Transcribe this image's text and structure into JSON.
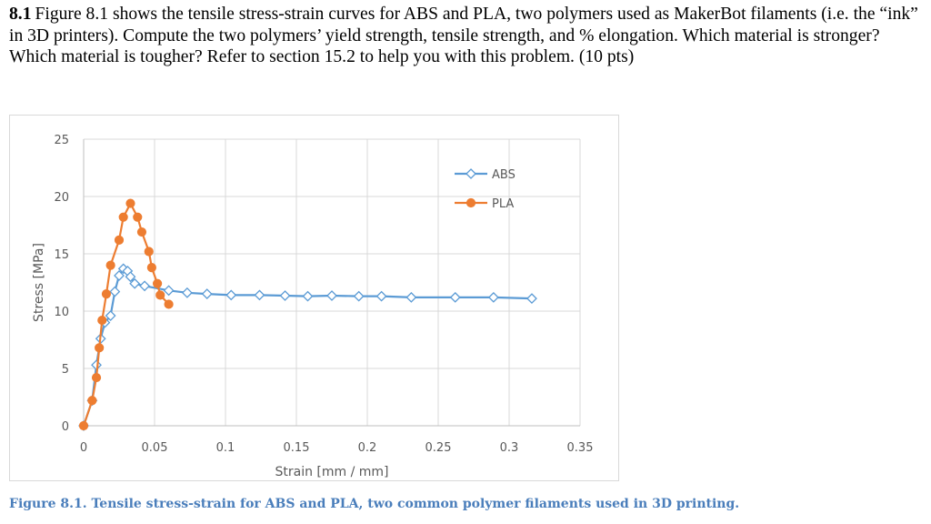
{
  "problem": {
    "number": "8.1",
    "text": "Figure 8.1 shows the tensile stress-strain curves for ABS and PLA, two polymers used as MakerBot filaments (i.e. the “ink” in 3D printers). Compute the two polymers’ yield strength, tensile strength, and % elongation. Which material is stronger? Which material is tougher? Refer to section 15.2 to help you with this problem. (10 pts)"
  },
  "caption": "Figure 8.1. Tensile stress-strain for ABS and PLA, two common polymer filaments used in 3D printing.",
  "chart_data": {
    "type": "scatter",
    "title": "",
    "xlabel": "Strain [mm / mm]",
    "ylabel": "Stress [MPa]",
    "xlim": [
      0,
      0.35
    ],
    "ylim": [
      0,
      25
    ],
    "x_ticks": [
      0,
      0.05,
      0.1,
      0.15,
      0.2,
      0.25,
      0.3,
      0.35
    ],
    "x_tick_labels": [
      "0",
      "0.05",
      "0.1",
      "0.15",
      "0.2",
      "0.25",
      "0.3",
      "0.35"
    ],
    "y_ticks": [
      0,
      5,
      10,
      15,
      20,
      25
    ],
    "y_tick_labels": [
      "0",
      "5",
      "10",
      "15",
      "20",
      "25"
    ],
    "grid": true,
    "legend_position": "top-right",
    "series": [
      {
        "name": "ABS",
        "color": "#5b9bd5",
        "marker": "diamond-open",
        "points": [
          [
            0,
            0
          ],
          [
            0.006,
            2.2
          ],
          [
            0.009,
            5.3
          ],
          [
            0.012,
            7.6
          ],
          [
            0.015,
            9.0
          ],
          [
            0.019,
            9.6
          ],
          [
            0.022,
            11.7
          ],
          [
            0.025,
            13.1
          ],
          [
            0.028,
            13.7
          ],
          [
            0.031,
            13.5
          ],
          [
            0.033,
            13.0
          ],
          [
            0.036,
            12.4
          ],
          [
            0.043,
            12.2
          ],
          [
            0.06,
            11.8
          ],
          [
            0.073,
            11.6
          ],
          [
            0.087,
            11.5
          ],
          [
            0.104,
            11.4
          ],
          [
            0.124,
            11.4
          ],
          [
            0.142,
            11.35
          ],
          [
            0.158,
            11.3
          ],
          [
            0.175,
            11.35
          ],
          [
            0.194,
            11.3
          ],
          [
            0.21,
            11.3
          ],
          [
            0.231,
            11.2
          ],
          [
            0.262,
            11.2
          ],
          [
            0.289,
            11.2
          ],
          [
            0.316,
            11.1
          ]
        ]
      },
      {
        "name": "PLA",
        "color": "#ed7d31",
        "marker": "circle",
        "points": [
          [
            0,
            0
          ],
          [
            0.006,
            2.2
          ],
          [
            0.009,
            4.2
          ],
          [
            0.011,
            6.8
          ],
          [
            0.013,
            9.2
          ],
          [
            0.016,
            11.5
          ],
          [
            0.019,
            14.0
          ],
          [
            0.025,
            16.2
          ],
          [
            0.028,
            18.2
          ],
          [
            0.033,
            19.4
          ],
          [
            0.038,
            18.2
          ],
          [
            0.041,
            16.9
          ],
          [
            0.046,
            15.2
          ],
          [
            0.048,
            13.8
          ],
          [
            0.052,
            12.4
          ],
          [
            0.054,
            11.4
          ],
          [
            0.06,
            10.6
          ]
        ]
      }
    ]
  }
}
